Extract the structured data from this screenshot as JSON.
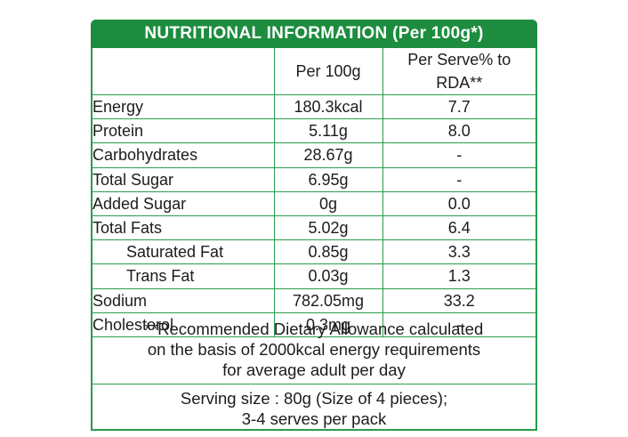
{
  "title": "NUTRITIONAL INFORMATION (Per 100g*)",
  "columns": {
    "blank": "",
    "per100g": "Per 100g",
    "perServe": "Per Serve% to RDA**"
  },
  "rows": [
    {
      "name": "Energy",
      "per100g": "180.3kcal",
      "perServe": "7.7"
    },
    {
      "name": "Protein",
      "per100g": "5.11g",
      "perServe": "8.0"
    },
    {
      "name": "Carbohydrates",
      "per100g": "28.67g",
      "perServe": "-"
    },
    {
      "name": "Total Sugar",
      "per100g": "6.95g",
      "perServe": "-"
    },
    {
      "name": "Added Sugar",
      "per100g": "0g",
      "perServe": "0.0"
    },
    {
      "name": "Total Fats",
      "per100g": "5.02g",
      "perServe": "6.4"
    },
    {
      "name": "Saturated Fat",
      "per100g": "0.85g",
      "perServe": "3.3"
    },
    {
      "name": "Trans Fat",
      "per100g": "0.03g",
      "perServe": "1.3"
    },
    {
      "name": "Sodium",
      "per100g": "782.05mg",
      "perServe": "33.2"
    },
    {
      "name": "Cholesterol",
      "per100g": "0.3mg",
      "perServe": "-"
    }
  ],
  "note": {
    "line1": "**Recommended Dietary Allowance calculated",
    "line2": "on the basis of 2000kcal energy requirements",
    "line3": "for average adult per day"
  },
  "serving": {
    "line1": "Serving size : 80g (Size of 4 pieces);",
    "line2": "3-4 serves per pack"
  },
  "colors": {
    "brand_green": "#1e8c3f",
    "border_green": "#2a9d4a",
    "text": "#1c1c1c"
  }
}
